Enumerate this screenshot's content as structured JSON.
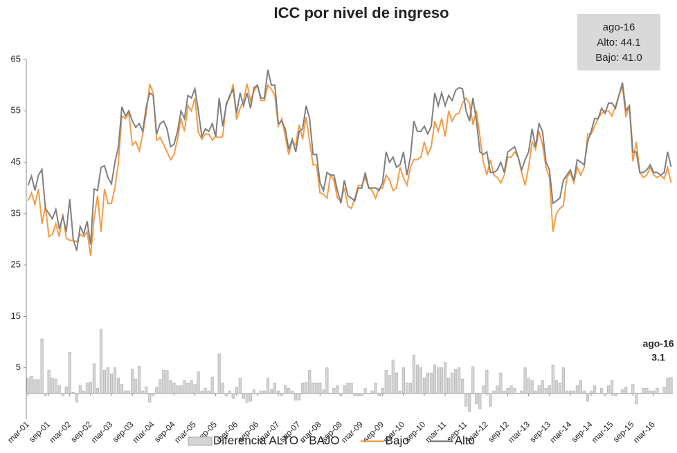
{
  "chart_data": {
    "type": "combo",
    "title": "ICC por nivel de ingreso",
    "categories": [
      "mar-01",
      null,
      null,
      null,
      null,
      null,
      "sep-01",
      null,
      null,
      null,
      null,
      null,
      "mar-02",
      null,
      null,
      null,
      null,
      null,
      "sep-02",
      null,
      null,
      null,
      null,
      null,
      "mar-03",
      null,
      null,
      null,
      null,
      null,
      "sep-03",
      null,
      null,
      null,
      null,
      null,
      "mar-04",
      null,
      null,
      null,
      null,
      null,
      "sep-04",
      null,
      null,
      null,
      null,
      null,
      "mar-05",
      null,
      null,
      null,
      null,
      null,
      "sep-05",
      null,
      null,
      null,
      null,
      null,
      "mar-06",
      null,
      null,
      null,
      null,
      null,
      "sep-06",
      null,
      null,
      null,
      null,
      null,
      "mar-07",
      null,
      null,
      null,
      null,
      null,
      "sep-07",
      null,
      null,
      null,
      null,
      null,
      "mar-08",
      null,
      null,
      null,
      null,
      null,
      "sep-08",
      null,
      null,
      null,
      null,
      null,
      "mar-09",
      null,
      null,
      null,
      null,
      null,
      "sep-09",
      null,
      null,
      null,
      null,
      null,
      "mar-10",
      null,
      null,
      null,
      null,
      null,
      "sep-10",
      null,
      null,
      null,
      null,
      null,
      "mar-11",
      null,
      null,
      null,
      null,
      null,
      "sep-11",
      null,
      null,
      null,
      null,
      null,
      "mar-12",
      null,
      null,
      null,
      null,
      null,
      "sep-12",
      null,
      null,
      null,
      null,
      null,
      "mar-13",
      null,
      null,
      null,
      null,
      null,
      "sep-13",
      null,
      null,
      null,
      null,
      null,
      "mar-14",
      null,
      null,
      null,
      null,
      null,
      "sep-14",
      null,
      null,
      null,
      null,
      null,
      "mar-15",
      null,
      null,
      null,
      null,
      null,
      "sep-15",
      null,
      null,
      null,
      null,
      null,
      "mar-16",
      null,
      null,
      null,
      null,
      null
    ],
    "series": [
      {
        "name": "Diferencia ALTO - BAJO",
        "kind": "bar",
        "color": "#d4d4d4",
        "values": [
          3.0,
          3.3,
          2.7,
          2.7,
          10.6,
          -0.5,
          4.5,
          3.0,
          2.8,
          1.5,
          -0.5,
          1.3,
          8.0,
          0.2,
          -1.7,
          1.5,
          0.5,
          2.0,
          2.2,
          5.8,
          1.0,
          12.5,
          4.5,
          5.0,
          3.8,
          5.0,
          3.0,
          1.8,
          0.5,
          0.5,
          4.7,
          2.8,
          5.3,
          0.5,
          1.3,
          -1.7,
          -0.5,
          1.2,
          2.7,
          4.5,
          4.5,
          2.5,
          2.0,
          1.5,
          1.5,
          2.5,
          2.0,
          2.5,
          1.8,
          4.2,
          0.5,
          1.0,
          0.5,
          3.2,
          0.0,
          7.7,
          2.0,
          -0.5,
          0.5,
          -1.0,
          1.2,
          3.0,
          -1.0,
          -1.8,
          -1.5,
          0.7,
          0.0,
          0.5,
          0.5,
          3.0,
          0.8,
          2.0,
          0.5,
          -0.5,
          1.5,
          1.0,
          0.5,
          -1.3,
          -1.3,
          2.0,
          2.2,
          4.5,
          2.0,
          2.0,
          2.0,
          0.7,
          5.0,
          0.0,
          1.0,
          1.5,
          -0.5,
          1.5,
          2.0,
          2.0,
          -0.5,
          -0.5,
          -0.5,
          1.0,
          0.0,
          0.5,
          2.0,
          -0.5,
          1.0,
          4.5,
          3.5,
          6.5,
          4.0,
          0.5,
          5.0,
          2.0,
          2.0,
          7.5,
          5.5,
          5.0,
          3.0,
          4.0,
          4.0,
          5.5,
          5.0,
          5.0,
          6.0,
          3.0,
          4.0,
          4.7,
          5.0,
          2.8,
          -2.5,
          -3.5,
          5.2,
          -2.0,
          -3.0,
          1.5,
          4.5,
          -2.5,
          0.5,
          1.5,
          4.0,
          0.5,
          1.0,
          1.5,
          1.0,
          0.0,
          0.5,
          5.0,
          3.0,
          2.5,
          0.5,
          1.5,
          2.5,
          1.0,
          1.5,
          5.5,
          2.5,
          2.0,
          5.0,
          0.5,
          0.5,
          0.5,
          1.5,
          2.5,
          0.5,
          -1.5,
          0.5,
          1.5,
          0.0,
          1.0,
          -0.5,
          1.5,
          2.5,
          -0.5,
          0.0,
          0.7,
          1.2,
          0.0,
          1.8,
          -2.0,
          0.0,
          1.0,
          1.0,
          0.5,
          0.5,
          1.0,
          0.0,
          1.2,
          3.0,
          3.1
        ]
      },
      {
        "name": "Bajo",
        "kind": "line",
        "color": "#f39c45",
        "values": [
          37.5,
          39,
          36.8,
          39.8,
          33,
          36.5,
          30.5,
          31,
          33,
          30.5,
          35,
          30.2,
          29.8,
          29.8,
          29.5,
          31,
          30.5,
          31.5,
          26.8,
          34,
          38.5,
          31.5,
          39.8,
          37,
          37,
          40,
          45,
          54,
          53.5,
          54.5,
          48.3,
          49,
          47.2,
          50.5,
          54.5,
          60.2,
          58.5,
          49.3,
          49.8,
          48.5,
          47,
          45.5,
          46.5,
          49.5,
          53.5,
          51,
          56,
          55,
          57.5,
          50.8,
          49.5,
          50.5,
          50.5,
          49.3,
          50,
          49.8,
          50,
          56.5,
          57.5,
          60.2,
          53.3,
          55.5,
          57,
          60.3,
          57,
          58.8,
          60,
          57,
          57,
          60,
          59.2,
          58,
          52,
          53.5,
          50,
          46.5,
          49,
          48.3,
          52.3,
          49.5,
          53.8,
          49,
          44.5,
          44.5,
          39,
          38.8,
          38,
          42.5,
          41.5,
          38,
          37.5,
          40,
          36.5,
          36,
          38,
          40.5,
          40.5,
          42,
          40,
          39.5,
          38,
          40,
          40,
          42.5,
          41.5,
          39.5,
          40,
          44,
          42,
          40.5,
          44,
          45.5,
          45.5,
          46,
          49,
          46.5,
          48,
          53,
          51,
          53.5,
          50,
          55,
          53,
          54.3,
          54.5,
          56.5,
          57.5,
          56.5,
          52.3,
          55,
          50,
          45,
          42.5,
          45.5,
          42.5,
          42,
          41,
          42.5,
          46,
          46,
          47,
          46,
          43,
          40.5,
          44,
          49,
          47.5,
          51,
          48.5,
          44,
          42,
          31.5,
          35,
          36,
          36.5,
          42,
          43,
          41,
          44,
          42.5,
          44,
          50.5,
          50.5,
          52,
          53.5,
          54.5,
          55,
          55,
          54,
          56,
          58,
          59.8,
          53.8,
          56,
          45.2,
          49,
          43,
          42,
          42.5,
          44,
          42.5,
          42,
          42.5,
          41.8,
          44,
          41.0
        ]
      },
      {
        "name": "Alto",
        "kind": "line",
        "color": "#7f7f7f",
        "values": [
          40.5,
          42.3,
          39.5,
          42.5,
          43.6,
          36,
          35,
          34,
          35.8,
          32,
          34.5,
          31.5,
          37.8,
          30,
          27.8,
          32.5,
          31,
          33.5,
          29,
          39.8,
          39.5,
          44,
          44.3,
          42,
          40.8,
          45,
          48,
          55.8,
          54,
          55,
          53,
          51.8,
          52.5,
          51,
          55.8,
          58.5,
          58,
          50.5,
          52.5,
          53,
          51.5,
          48,
          48.5,
          51,
          55,
          53.5,
          58,
          57.5,
          59.3,
          55,
          50,
          51.5,
          51,
          52.5,
          50,
          57.5,
          52,
          56,
          58,
          59.2,
          54.5,
          58.5,
          56,
          58.5,
          55.5,
          59.5,
          60,
          57.5,
          57.5,
          63,
          60,
          60,
          52.5,
          53,
          51.5,
          47.5,
          49.5,
          47,
          51,
          51.5,
          56,
          53.5,
          46.5,
          46.5,
          41,
          39.5,
          43,
          42.5,
          42.5,
          39.5,
          37,
          41.5,
          38.5,
          38,
          37.5,
          40,
          40,
          43,
          40,
          40,
          40,
          39.5,
          41,
          47,
          45,
          46,
          44,
          44.5,
          47,
          42.5,
          46,
          53,
          51,
          51,
          52,
          50.5,
          52,
          58.5,
          56,
          58.5,
          56,
          58,
          57,
          59,
          59.5,
          59.3,
          55,
          53,
          57.5,
          53,
          47,
          46.5,
          47,
          43,
          43,
          43.5,
          45,
          43,
          47,
          47.5,
          48,
          46,
          43.5,
          45.5,
          47,
          51.5,
          48,
          52.5,
          51,
          45,
          43.5,
          37,
          37.5,
          38,
          41.5,
          42.5,
          43.5,
          41.5,
          45.5,
          45,
          44.5,
          49,
          51,
          53.5,
          53.5,
          55.5,
          54.5,
          56.5,
          56.5,
          55.5,
          58,
          60.5,
          55,
          56,
          47,
          47,
          43,
          43,
          43.5,
          44.5,
          43,
          43,
          42.5,
          43,
          47,
          44.1
        ]
      }
    ],
    "ylim": [
      -5,
      65
    ],
    "yticks": [
      5,
      15,
      25,
      35,
      45,
      55,
      65
    ],
    "grid": false,
    "info_box": [
      "ago-16",
      "Alto: 44.1",
      "Bajo: 41.0"
    ],
    "last_label": "ago-16"
  }
}
